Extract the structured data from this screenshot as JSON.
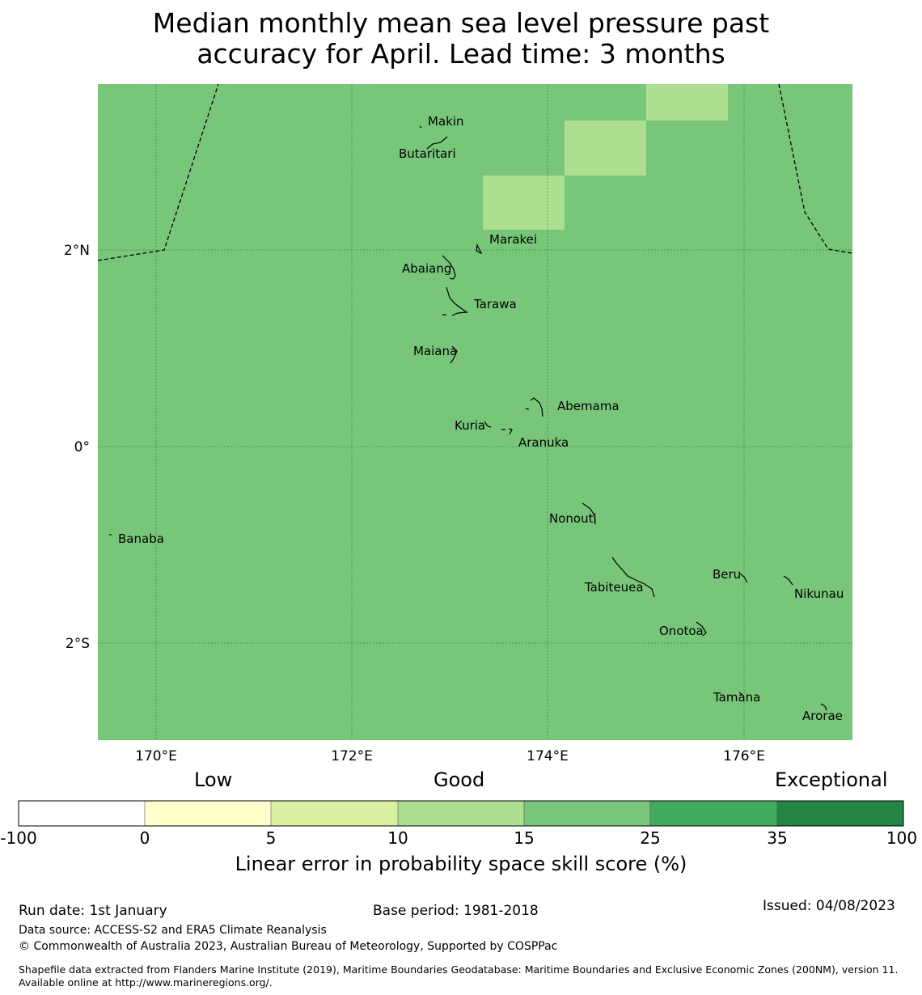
{
  "title_line1": "Median monthly mean sea level pressure past",
  "title_line2": "accuracy for April. Lead time: 3 months",
  "map": {
    "background_color": "#78c67a",
    "highlight_color": "#addf8e",
    "lon_ticks": [
      "170°E",
      "172°E",
      "174°E",
      "176°E"
    ],
    "lat_ticks": [
      "2°N",
      "0°",
      "2°S"
    ],
    "islands": [
      {
        "name": "Makin"
      },
      {
        "name": "Butaritari"
      },
      {
        "name": "Marakei"
      },
      {
        "name": "Abaiang"
      },
      {
        "name": "Tarawa"
      },
      {
        "name": "Maiana"
      },
      {
        "name": "Abemama"
      },
      {
        "name": "Kuria"
      },
      {
        "name": "Aranuka"
      },
      {
        "name": "Nonouti"
      },
      {
        "name": "Banaba"
      },
      {
        "name": "Tabiteuea"
      },
      {
        "name": "Beru"
      },
      {
        "name": "Nikunau"
      },
      {
        "name": "Onotoa"
      },
      {
        "name": "Tamana"
      },
      {
        "name": "Arorae"
      }
    ]
  },
  "colorbar": {
    "category_labels": [
      "Low",
      "Good",
      "Exceptional"
    ],
    "tick_labels": [
      "-100",
      "0",
      "5",
      "10",
      "15",
      "25",
      "35",
      "100"
    ],
    "colors": [
      "#ffffff",
      "#ffffcc",
      "#d9f0a3",
      "#addf8e",
      "#78c67a",
      "#41ab5d",
      "#238443"
    ],
    "title": "Linear error in probability space skill score (%)"
  },
  "footer": {
    "run_date": "Run date: 1st January",
    "base_period": "Base period: 1981-2018",
    "issued": "Issued: 04/08/2023",
    "data_source": "Data source: ACCESS-S2 and ERA5 Climate Reanalysis",
    "copyright": "© Commonwealth of Australia 2023, Australian Bureau of Meteorology, Supported by COSPPac",
    "shapefile": "Shapefile data extracted from Flanders Marine Institute (2019), Maritime Boundaries Geodatabase: Maritime Boundaries and Exclusive Economic Zones (200NM), version 11. Available online at http://www.marineregions.org/."
  }
}
